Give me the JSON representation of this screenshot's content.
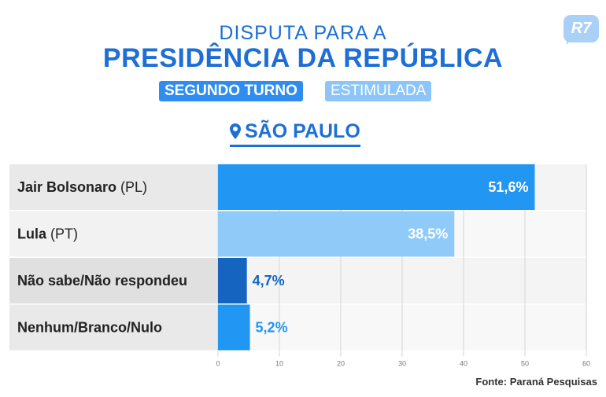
{
  "header": {
    "line1": "DISPUTA PARA A",
    "line2": "PRESIDÊNCIA DA REPÚBLICA",
    "round": "SEGUNDO TURNO",
    "mode": "ESTIMULADA",
    "logo": "R7",
    "state": "SÃO PAULO"
  },
  "colors": {
    "brand": "#1d6fd6",
    "bolsonaro": "#2196f3",
    "lula": "#90caf9",
    "nao_sabe": "#1565c0",
    "nenhum": "#2196f3"
  },
  "chart_data": {
    "type": "bar",
    "orientation": "horizontal",
    "categories": [
      {
        "name": "Jair Bolsonaro",
        "party": "(PL)"
      },
      {
        "name": "Lula",
        "party": "(PT)"
      },
      {
        "name": "Não sabe/Não respondeu",
        "party": ""
      },
      {
        "name": "Nenhum/Branco/Nulo",
        "party": ""
      }
    ],
    "values": [
      51.6,
      38.5,
      4.7,
      5.2
    ],
    "value_labels": [
      "51,6%",
      "38,5%",
      "4,7%",
      "5,2%"
    ],
    "bar_colors": [
      "#2196f3",
      "#90caf9",
      "#1565c0",
      "#2196f3"
    ],
    "label_inside": [
      true,
      true,
      false,
      false
    ],
    "xlim": [
      0,
      60
    ],
    "xticks": [
      "0",
      "10",
      "20",
      "30",
      "40",
      "50",
      "60"
    ],
    "grid": true
  },
  "footer": {
    "source": "Fonte: Paraná Pesquisas"
  }
}
